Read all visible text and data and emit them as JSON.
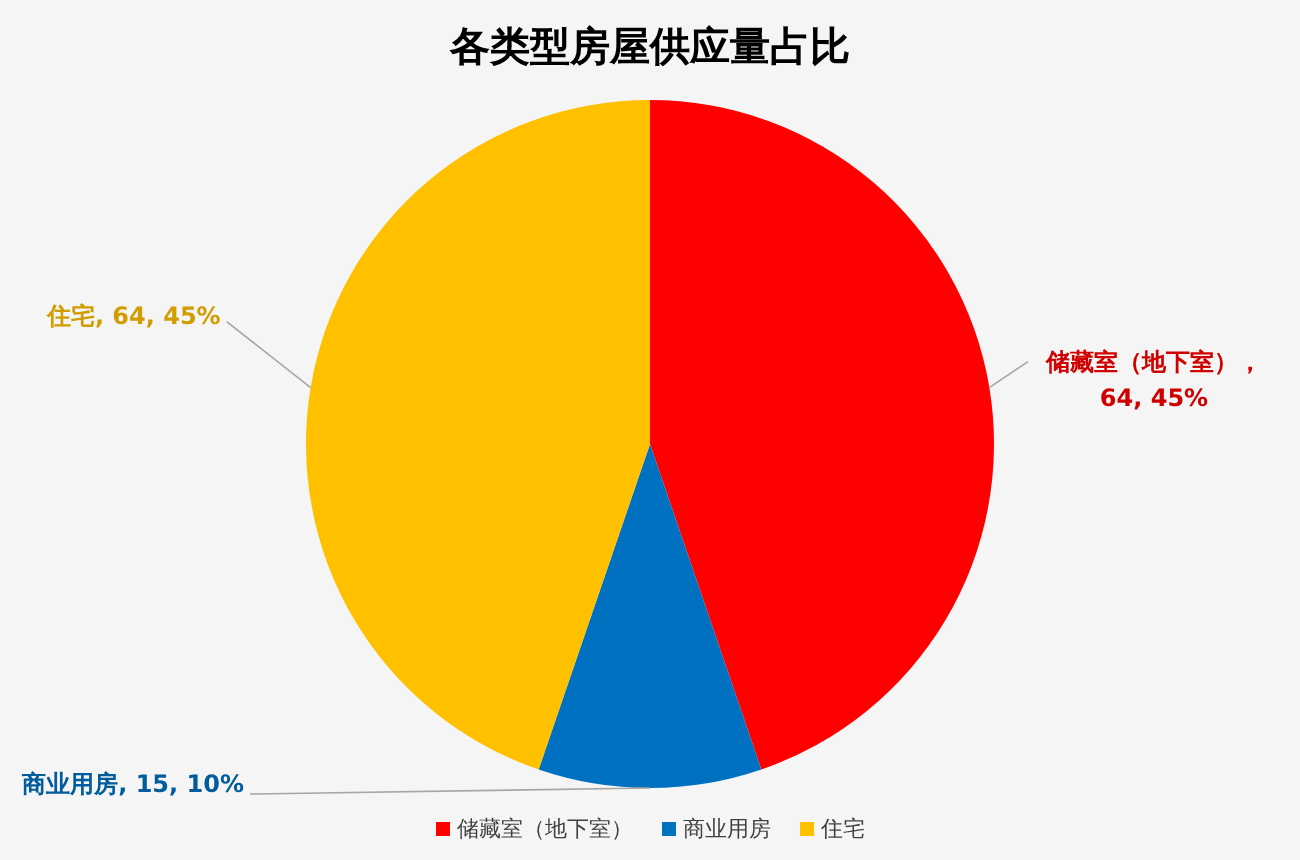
{
  "chart_data": {
    "type": "pie",
    "title": "各类型房屋供应量占比",
    "categories": [
      "储藏室（地下室）",
      "商业用房",
      "住宅"
    ],
    "values": [
      64,
      15,
      64
    ],
    "colors": [
      "#ff0000",
      "#0070c0",
      "#ffc000"
    ],
    "value_labels": [
      "储藏室（地下室），64, 45%",
      "商业用房, 15, 10%",
      "住宅, 64, 45%"
    ],
    "legend": "bottom"
  }
}
